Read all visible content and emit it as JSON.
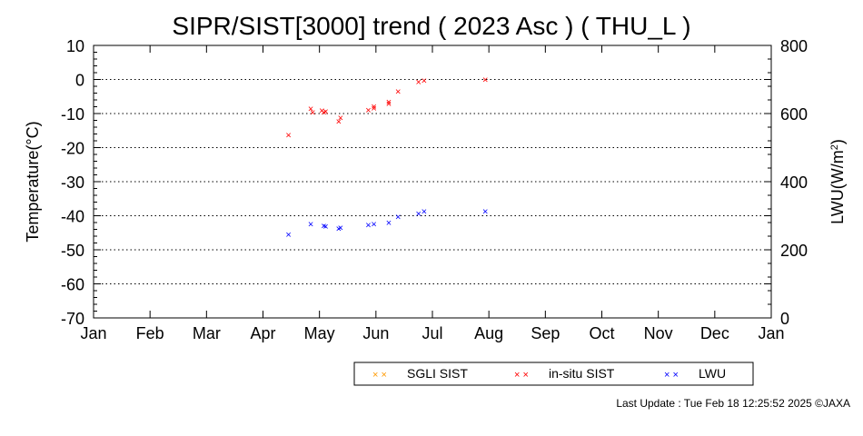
{
  "chart_data": {
    "type": "scatter",
    "title": "SIPR/SIST[3000] trend ( 2023 Asc ) ( THU_L )",
    "ylabel": "Temperature(°C)",
    "y2label_main": "LWU(W/m",
    "y2label_sup": "2",
    "y2label_end": ")",
    "ylim": [
      -70,
      10
    ],
    "y2lim": [
      0,
      800
    ],
    "yticks": [
      "10",
      "0",
      "-10",
      "-20",
      "-30",
      "-40",
      "-50",
      "-60",
      "-70"
    ],
    "y2ticks": [
      "800",
      "600",
      "400",
      "200",
      "0"
    ],
    "xticks": [
      "Jan",
      "Feb",
      "Mar",
      "Apr",
      "May",
      "Jun",
      "Jul",
      "Aug",
      "Sep",
      "Oct",
      "Nov",
      "Dec",
      "Jan"
    ],
    "xlim_day_of_year": [
      1,
      366
    ],
    "grid": "horizontal-dotted",
    "legend_position": "bottom-center",
    "marker": "×",
    "series": [
      {
        "name": "SGLI SIST",
        "color": "#ff9900",
        "axis": "left",
        "points": []
      },
      {
        "name": "in-situ SIST",
        "color": "#ff0000",
        "axis": "left",
        "points": [
          {
            "x": "2023-04-16",
            "y": -16.3
          },
          {
            "x": "2023-04-28",
            "y": -8.5
          },
          {
            "x": "2023-04-29",
            "y": -9.6
          },
          {
            "x": "2023-05-04",
            "y": -9.0
          },
          {
            "x": "2023-05-05",
            "y": -9.6
          },
          {
            "x": "2023-05-06",
            "y": -9.3
          },
          {
            "x": "2023-05-13",
            "y": -12.3
          },
          {
            "x": "2023-05-14",
            "y": -11.2
          },
          {
            "x": "2023-05-29",
            "y": -8.9
          },
          {
            "x": "2023-06-01",
            "y": -7.9
          },
          {
            "x": "2023-06-01",
            "y": -8.4
          },
          {
            "x": "2023-06-09",
            "y": -6.5
          },
          {
            "x": "2023-06-09",
            "y": -7.1
          },
          {
            "x": "2023-06-14",
            "y": -3.4
          },
          {
            "x": "2023-06-25",
            "y": -0.6
          },
          {
            "x": "2023-06-28",
            "y": -0.2
          },
          {
            "x": "2023-07-31",
            "y": 0.0
          }
        ]
      },
      {
        "name": "LWU",
        "color": "#0000ff",
        "axis": "right",
        "points": [
          {
            "x": "2023-04-16",
            "y": 245
          },
          {
            "x": "2023-04-28",
            "y": 276
          },
          {
            "x": "2023-05-05",
            "y": 271
          },
          {
            "x": "2023-05-06",
            "y": 270
          },
          {
            "x": "2023-05-13",
            "y": 263
          },
          {
            "x": "2023-05-14",
            "y": 266
          },
          {
            "x": "2023-05-29",
            "y": 274
          },
          {
            "x": "2023-06-01",
            "y": 276
          },
          {
            "x": "2023-06-09",
            "y": 280
          },
          {
            "x": "2023-06-14",
            "y": 297
          },
          {
            "x": "2023-06-25",
            "y": 307
          },
          {
            "x": "2023-06-28",
            "y": 313
          },
          {
            "x": "2023-07-31",
            "y": 313
          }
        ]
      }
    ]
  },
  "footer": "Last Update : Tue Feb 18 12:25:52 2025  ©JAXA"
}
